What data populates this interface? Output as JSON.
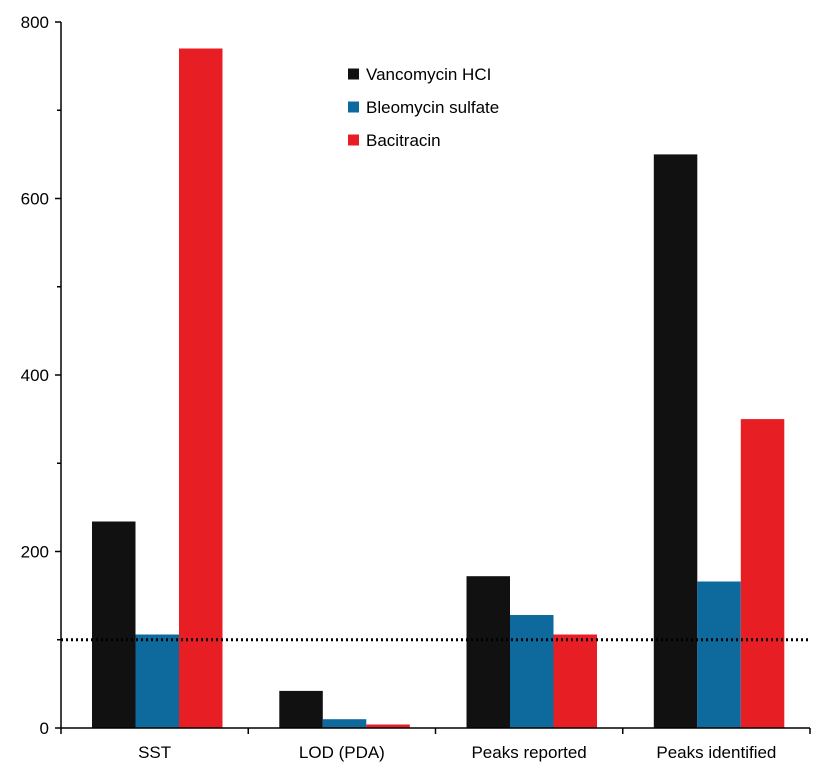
{
  "chart_data": {
    "type": "bar",
    "categories": [
      "SST",
      "LOD (PDA)",
      "Peaks reported",
      "Peaks identified"
    ],
    "series": [
      {
        "name": "Vancomycin HCI",
        "color": "#111111",
        "values": [
          234,
          42,
          172,
          650
        ]
      },
      {
        "name": "Bleomycin sulfate",
        "color": "#0e6a9c",
        "values": [
          106,
          10,
          128,
          166
        ]
      },
      {
        "name": "Bacitracin",
        "color": "#e81e25",
        "values": [
          770,
          4,
          106,
          350
        ]
      }
    ],
    "ylim": [
      0,
      800
    ],
    "yticks": [
      0,
      200,
      400,
      600,
      800
    ],
    "reference_line": {
      "value": 100,
      "style": "dotted",
      "color": "#000000"
    },
    "legend": {
      "position": "top-center"
    },
    "grid": false,
    "title": "",
    "xlabel": "",
    "ylabel": ""
  }
}
